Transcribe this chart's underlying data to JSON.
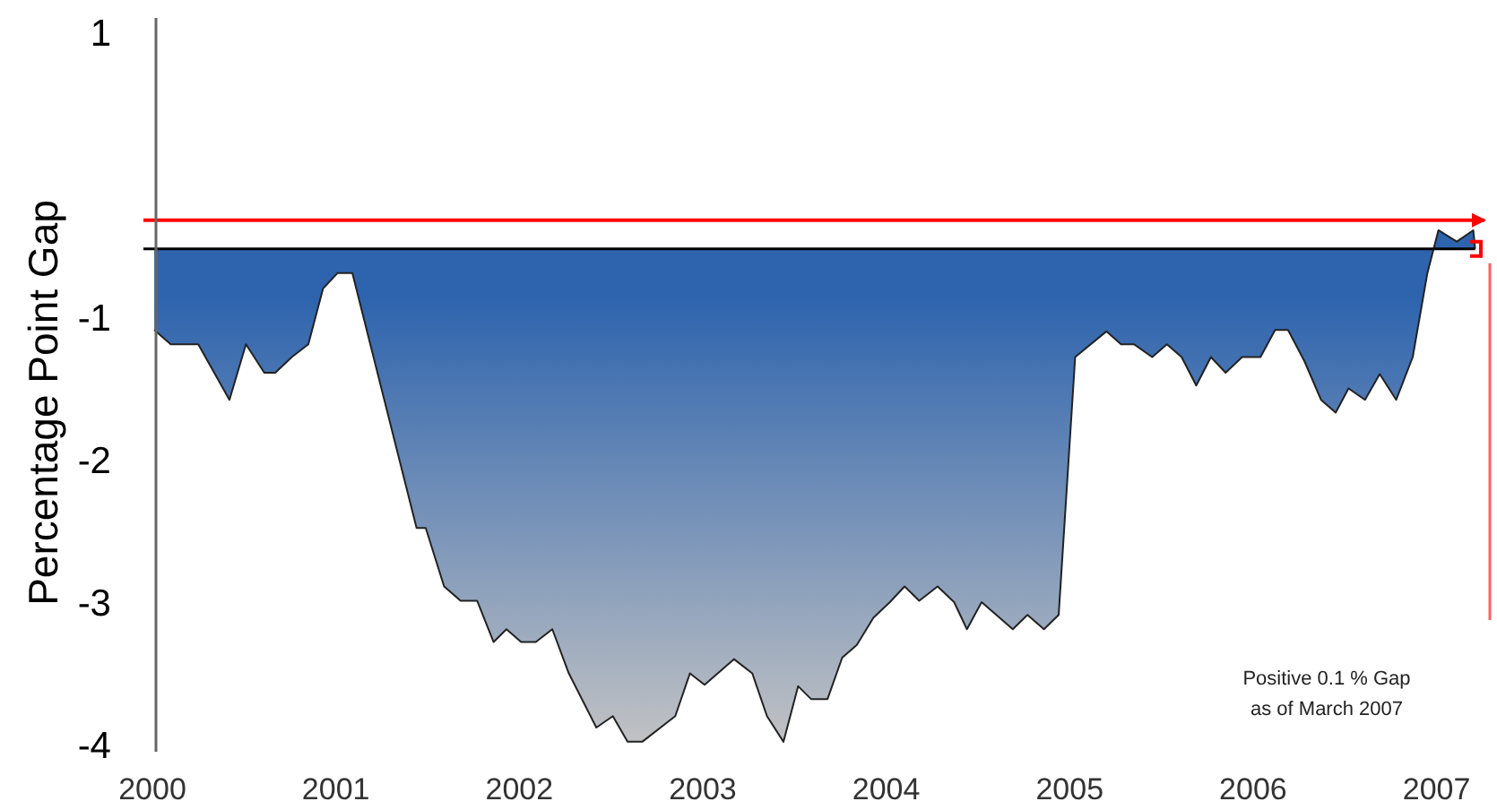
{
  "chart_data": {
    "type": "area",
    "ylabel": "Percentage Point Gap",
    "x": [
      2000.01,
      2000.1,
      2000.25,
      2000.42,
      2000.51,
      2000.61,
      2000.67,
      2000.76,
      2000.85,
      2000.93,
      2001.01,
      2001.09,
      2001.44,
      2001.49,
      2001.59,
      2001.68,
      2001.77,
      2001.86,
      2001.93,
      2002.01,
      2002.09,
      2002.18,
      2002.27,
      2002.42,
      2002.51,
      2002.59,
      2002.67,
      2002.85,
      2002.93,
      2003.01,
      2003.17,
      2003.27,
      2003.35,
      2003.44,
      2003.52,
      2003.59,
      2003.68,
      2003.76,
      2003.84,
      2003.93,
      2004.02,
      2004.1,
      2004.18,
      2004.28,
      2004.37,
      2004.44,
      2004.52,
      2004.69,
      2004.77,
      2004.86,
      2004.94,
      2005.03,
      2005.2,
      2005.28,
      2005.35,
      2005.45,
      2005.53,
      2005.61,
      2005.69,
      2005.77,
      2005.85,
      2005.94,
      2006.04,
      2006.12,
      2006.19,
      2006.28,
      2006.37,
      2006.45,
      2006.52,
      2006.61,
      2006.69,
      2006.78,
      2006.87,
      2006.95,
      2007.01,
      2007.11,
      2007.2,
      2007.21
    ],
    "series": [
      {
        "color": "#2e64ae",
        "values": [
          -1.09,
          -1.19,
          -1.19,
          -1.58,
          -1.19,
          -1.39,
          -1.39,
          -1.28,
          -1.19,
          -0.8,
          -0.69,
          -0.69,
          -2.48,
          -2.48,
          -2.89,
          -2.99,
          -2.99,
          -3.28,
          -3.19,
          -3.28,
          -3.28,
          -3.19,
          -3.5,
          -3.88,
          -3.8,
          -3.98,
          -3.98,
          -3.8,
          -3.5,
          -3.58,
          -3.4,
          -3.5,
          -3.8,
          -3.98,
          -3.59,
          -3.68,
          -3.68,
          -3.39,
          -3.3,
          -3.11,
          -3,
          -2.89,
          -2.99,
          -2.89,
          -3,
          -3.19,
          -3,
          -3.19,
          -3.09,
          -3.19,
          -3.09,
          -1.28,
          -1.1,
          -1.19,
          -1.19,
          -1.28,
          -1.19,
          -1.28,
          -1.48,
          -1.28,
          -1.39,
          -1.28,
          -1.28,
          -1.09,
          -1.09,
          -1.31,
          -1.58,
          -1.67,
          -1.5,
          -1.58,
          -1.4,
          -1.58,
          -1.28,
          -0.69,
          -0.39,
          -0.47,
          -0.39,
          -0.52
        ]
      }
    ],
    "xlim": [
      2000,
      2007.3
    ],
    "xticks": [
      2000,
      2001,
      2002,
      2003,
      2004,
      2005,
      2006,
      2007
    ],
    "ylim": [
      -4.05,
      1.1
    ],
    "yticks": [
      1,
      -1,
      -2,
      -3,
      -4
    ],
    "ref_lines": [
      {
        "axis": "y",
        "value": -0.32,
        "color": "#ff0000"
      },
      {
        "axis": "y",
        "value": -0.52,
        "color": "#000000"
      }
    ],
    "annotations": [
      "Positive 0.1 % Gap\nas of March 2007"
    ],
    "grid": false
  }
}
